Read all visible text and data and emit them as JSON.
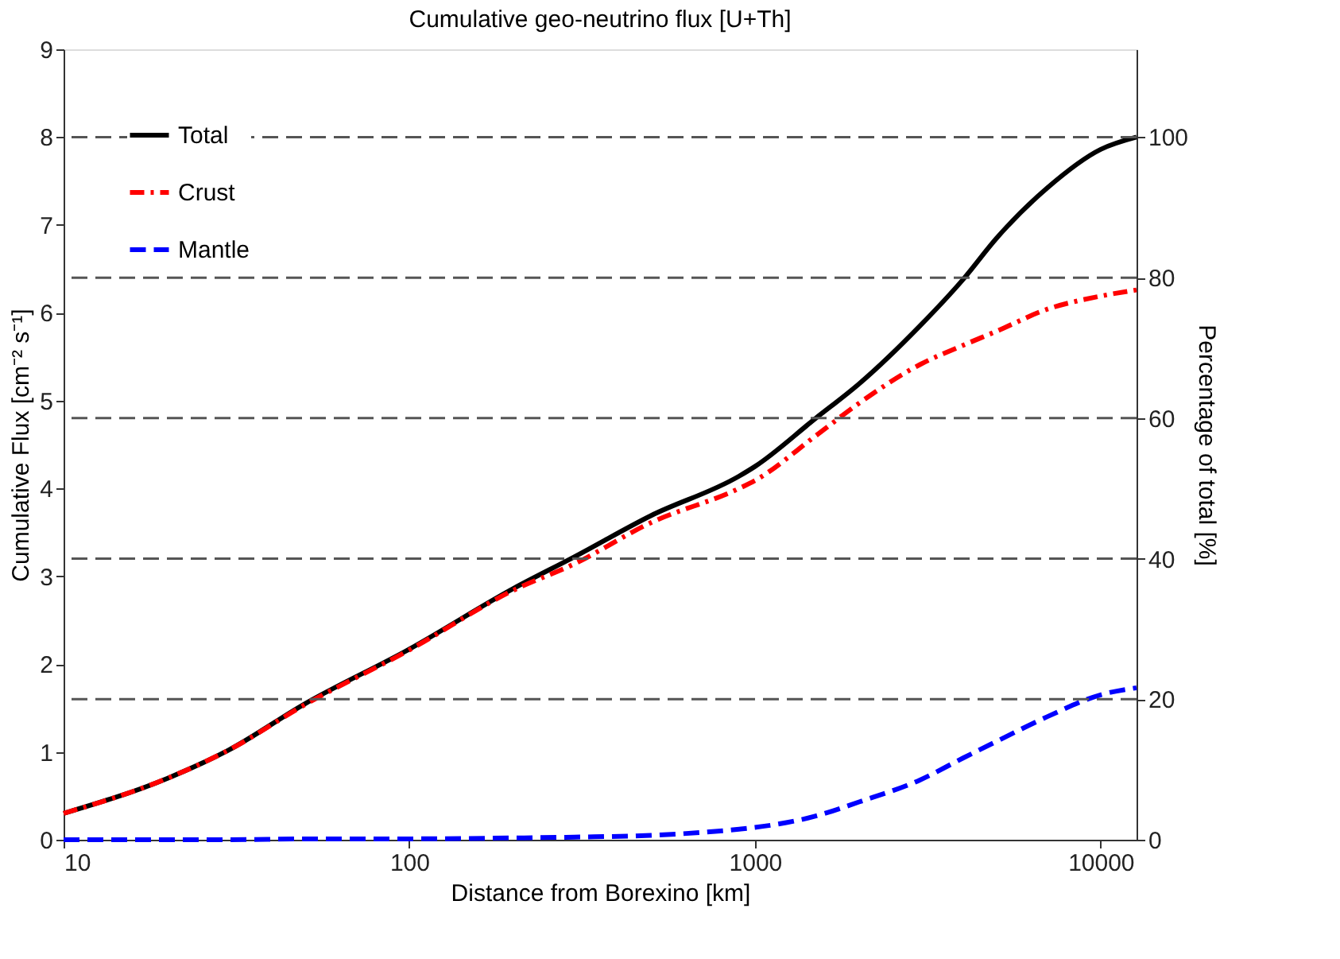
{
  "chart_data": {
    "type": "line",
    "title": "Cumulative geo-neutrino flux [U+Th]",
    "xlabel": "Distance from Borexino [km]",
    "ylabel": "Cumulative Flux [cm⁻² s⁻¹]",
    "y2label": "Percentage of total [%]",
    "log": "x",
    "xlim": [
      10,
      12700
    ],
    "xticks": [
      10,
      100,
      1000,
      10000
    ],
    "ylim": [
      0,
      9
    ],
    "yticks": [
      0,
      1,
      2,
      3,
      4,
      5,
      6,
      7,
      8,
      9
    ],
    "y2lim": [
      0,
      112.5
    ],
    "y2ticks": [
      0,
      20,
      40,
      60,
      80,
      100
    ],
    "x": [
      10,
      20,
      30,
      50,
      100,
      200,
      300,
      500,
      900,
      1000,
      1500,
      2000,
      3000,
      4000,
      5000,
      7000,
      10000,
      12700
    ],
    "series": [
      {
        "name": "Total",
        "color": "#000000",
        "line_style": "solid",
        "values": [
          0.3,
          0.7,
          1.02,
          1.55,
          2.17,
          2.86,
          3.22,
          3.69,
          4.14,
          4.25,
          4.8,
          5.19,
          5.85,
          6.38,
          6.85,
          7.42,
          7.86,
          8.0
        ]
      },
      {
        "name": "Crust",
        "color": "#ff0000",
        "line_style": "dashdot",
        "values": [
          0.3,
          0.7,
          1.02,
          1.54,
          2.16,
          2.84,
          3.14,
          3.61,
          4.0,
          4.09,
          4.6,
          4.97,
          5.41,
          5.63,
          5.79,
          6.04,
          6.19,
          6.26
        ]
      },
      {
        "name": "Mantle",
        "color": "#0000ff",
        "line_style": "dashed",
        "values": [
          0.0,
          0.0,
          0.0,
          0.01,
          0.01,
          0.02,
          0.03,
          0.05,
          0.12,
          0.14,
          0.27,
          0.43,
          0.68,
          0.93,
          1.12,
          1.4,
          1.65,
          1.73
        ]
      }
    ],
    "ref_lines": [
      {
        "axis": "y2",
        "value": 20,
        "label": null,
        "color": "#555555",
        "line_style": "dashed"
      },
      {
        "axis": "y2",
        "value": 40,
        "label": null,
        "color": "#555555",
        "line_style": "dashed"
      },
      {
        "axis": "y2",
        "value": 60,
        "label": null,
        "color": "#555555",
        "line_style": "dashed"
      },
      {
        "axis": "y2",
        "value": 80,
        "label": null,
        "color": "#555555",
        "line_style": "dashed"
      },
      {
        "axis": "y2",
        "value": 100,
        "label": null,
        "color": "#555555",
        "line_style": "dashed"
      }
    ],
    "legend": "top left",
    "grid": false
  }
}
